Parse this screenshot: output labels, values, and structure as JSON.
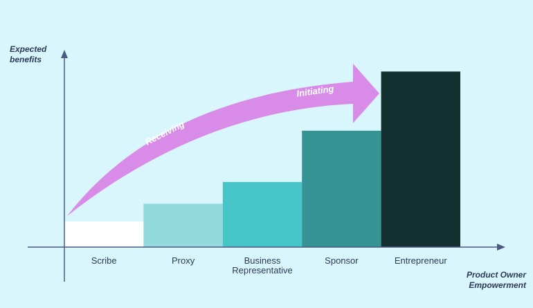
{
  "chart_data": {
    "type": "bar",
    "y_label": "Expected benefits",
    "x_label": "Product Owner Empowerment",
    "annotations": [
      "Receiving",
      "Initiating"
    ],
    "categories": [
      "Scribe",
      "Proxy",
      "Business Representative",
      "Sponsor",
      "Entrepreneur"
    ],
    "values": [
      13,
      22,
      33,
      59,
      89
    ],
    "colors": [
      "#ffffff",
      "#92dade",
      "#47c4c8",
      "#369393",
      "#133031"
    ],
    "ylim": [
      0,
      100
    ]
  }
}
